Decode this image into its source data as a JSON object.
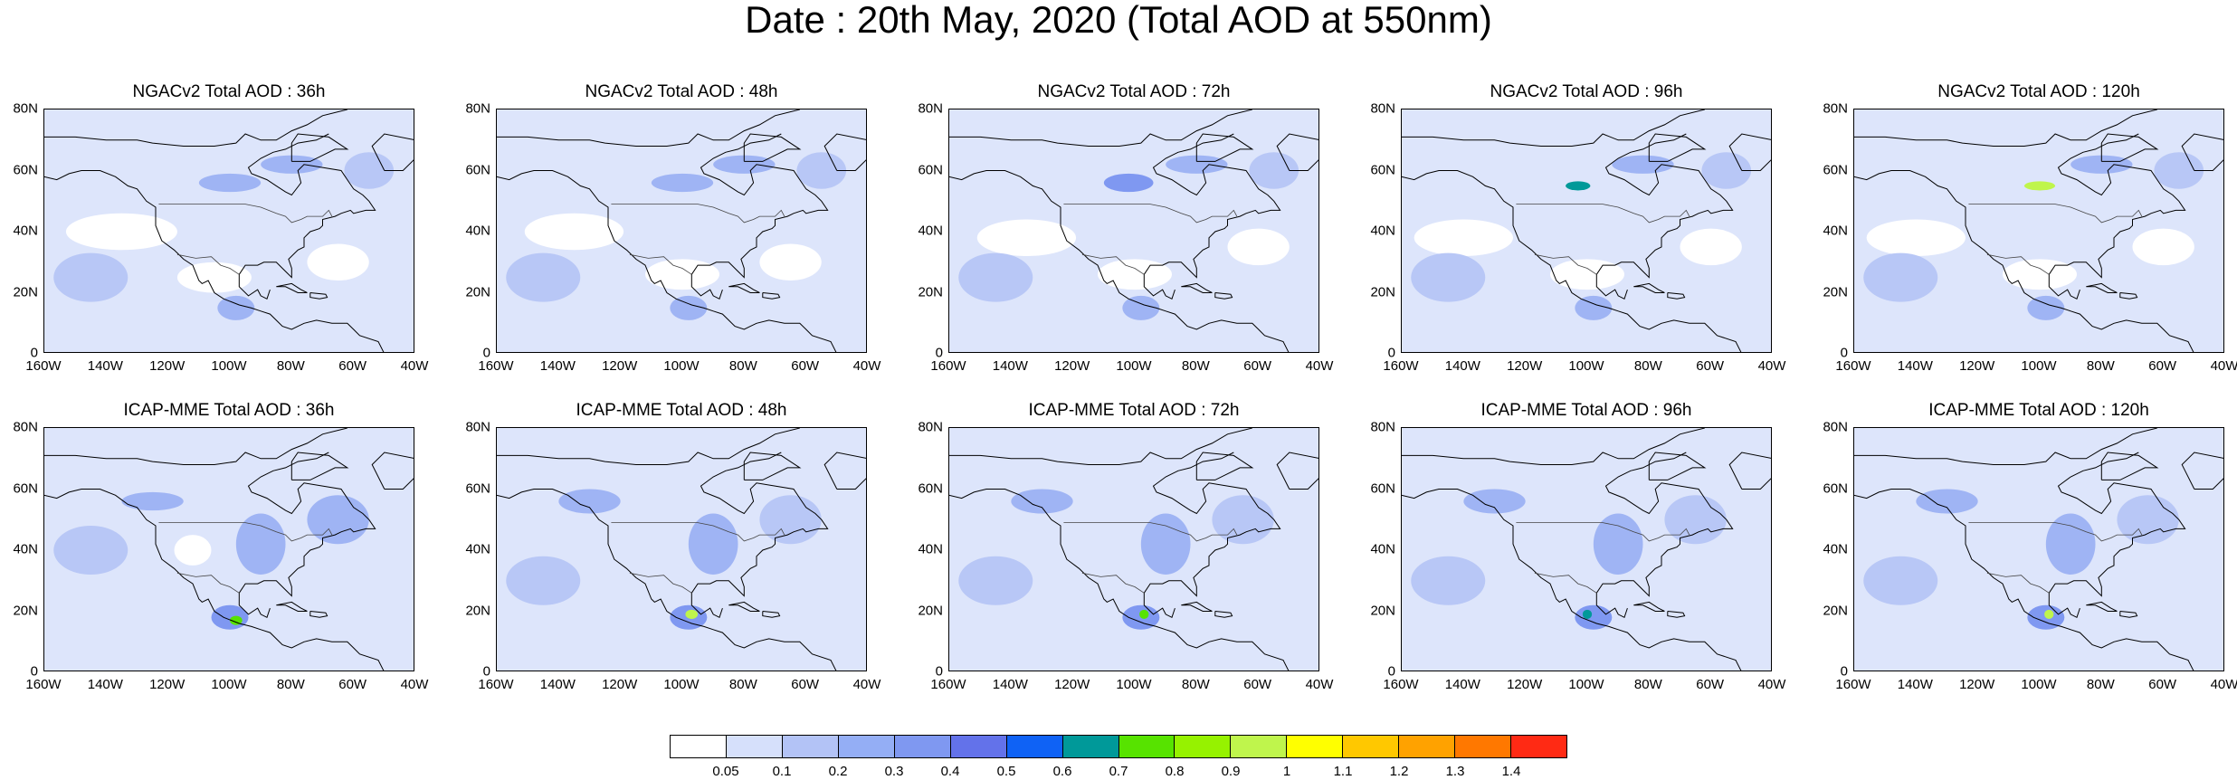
{
  "title": "Date : 20th May, 2020 (Total AOD at 550nm)",
  "panels": [
    {
      "title": "NGACv2 Total AOD : 36h",
      "model": "NGACv2",
      "forecast_hour": "36h"
    },
    {
      "title": "NGACv2 Total AOD : 48h",
      "model": "NGACv2",
      "forecast_hour": "48h"
    },
    {
      "title": "NGACv2 Total AOD : 72h",
      "model": "NGACv2",
      "forecast_hour": "72h"
    },
    {
      "title": "NGACv2 Total AOD : 96h",
      "model": "NGACv2",
      "forecast_hour": "96h"
    },
    {
      "title": "NGACv2 Total AOD : 120h",
      "model": "NGACv2",
      "forecast_hour": "120h"
    },
    {
      "title": "ICAP-MME Total AOD : 36h",
      "model": "ICAP-MME",
      "forecast_hour": "36h"
    },
    {
      "title": "ICAP-MME Total AOD : 48h",
      "model": "ICAP-MME",
      "forecast_hour": "48h"
    },
    {
      "title": "ICAP-MME Total AOD : 72h",
      "model": "ICAP-MME",
      "forecast_hour": "72h"
    },
    {
      "title": "ICAP-MME Total AOD : 96h",
      "model": "ICAP-MME",
      "forecast_hour": "96h"
    },
    {
      "title": "ICAP-MME Total AOD : 120h",
      "model": "ICAP-MME",
      "forecast_hour": "120h"
    }
  ],
  "lat_labels": [
    "80N",
    "60N",
    "40N",
    "20N",
    "0"
  ],
  "lon_labels": [
    "160W",
    "140W",
    "120W",
    "100W",
    "80W",
    "60W",
    "40W"
  ],
  "colorbar": {
    "labels": [
      "0.05",
      "0.1",
      "0.2",
      "0.3",
      "0.4",
      "0.5",
      "0.6",
      "0.7",
      "0.8",
      "0.9",
      "1",
      "1.1",
      "1.2",
      "1.3",
      "1.4"
    ],
    "colors": [
      "#ffffff",
      "#d6e0fb",
      "#b3c3f6",
      "#94aef5",
      "#7f98f1",
      "#6372ea",
      "#0f62f5",
      "#009999",
      "#57e300",
      "#96f200",
      "#bff54c",
      "#ffff00",
      "#ffc800",
      "#ffa200",
      "#ff7800",
      "#ff2a14"
    ]
  },
  "colors": {
    "background_aod": "#dde5fb",
    "coastline": "#000000"
  }
}
